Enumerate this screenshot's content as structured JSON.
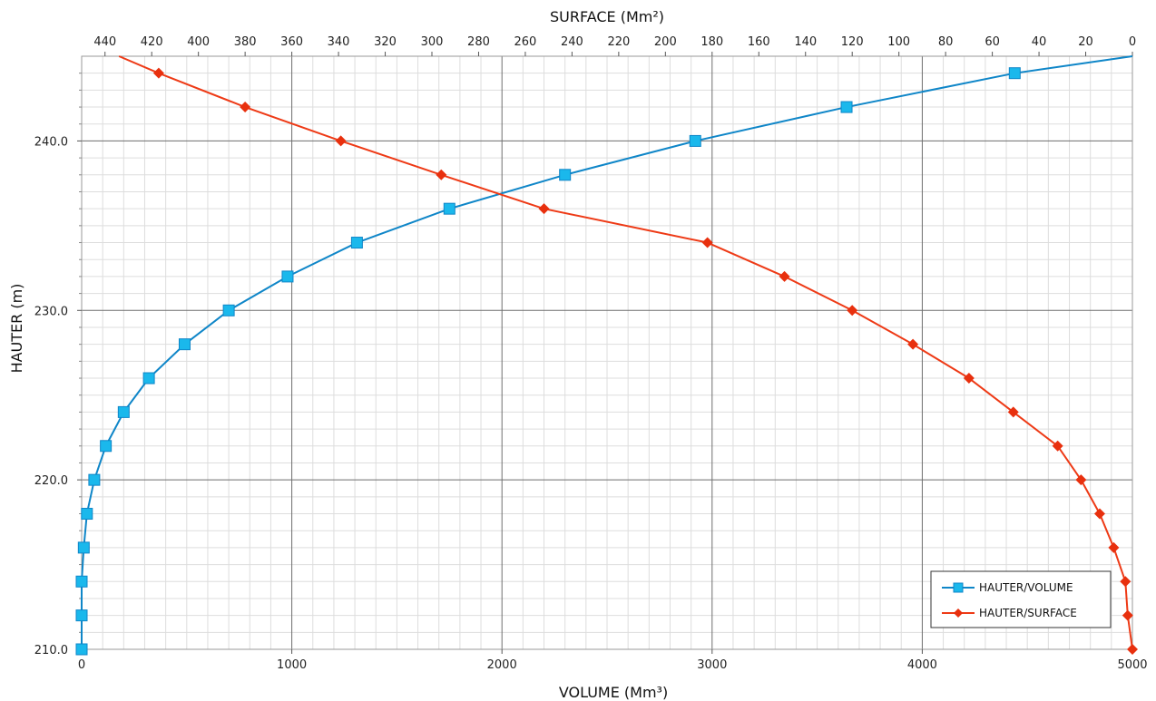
{
  "chart_data": {
    "type": "line",
    "title": "",
    "top_axis": {
      "label": "SURFACE (Mm²)",
      "range": [
        450,
        0
      ],
      "ticks": [
        "440",
        "420",
        "400",
        "380",
        "360",
        "340",
        "320",
        "300",
        "280",
        "260",
        "240",
        "220",
        "200",
        "180",
        "160",
        "140",
        "120",
        "100",
        "80",
        "60",
        "40",
        "20",
        "0"
      ]
    },
    "bottom_axis": {
      "label": "VOLUME (Mm³)",
      "range": [
        0,
        5000
      ],
      "ticks": [
        "0",
        "1000",
        "2000",
        "3000",
        "4000",
        "5000"
      ]
    },
    "left_axis": {
      "label": "HAUTER (m)",
      "range": [
        210,
        245
      ],
      "ticks": [
        "210.0",
        "220.0",
        "230.0",
        "240.0"
      ]
    },
    "grid": true,
    "legend_position": "bottom-right",
    "series": [
      {
        "name": "HAUTER/VOLUME",
        "axis": "bottom",
        "color": "#0f86c8",
        "marker": "square",
        "marker_color": "#1ab8ec",
        "points": [
          [
            0,
            210
          ],
          [
            0,
            212
          ],
          [
            0,
            214
          ],
          [
            10,
            216
          ],
          [
            25,
            218
          ],
          [
            60,
            220
          ],
          [
            115,
            222
          ],
          [
            200,
            224
          ],
          [
            320,
            226
          ],
          [
            490,
            228
          ],
          [
            700,
            230
          ],
          [
            980,
            232
          ],
          [
            1310,
            234
          ],
          [
            1750,
            236
          ],
          [
            2300,
            238
          ],
          [
            2920,
            240
          ],
          [
            3640,
            242
          ],
          [
            4440,
            244
          ],
          [
            5000,
            245
          ]
        ]
      },
      {
        "name": "HAUTER/SURFACE",
        "axis": "top",
        "color": "#ee3a16",
        "marker": "diamond",
        "marker_color": "#e8300e",
        "points": [
          [
            0,
            210
          ],
          [
            2,
            212
          ],
          [
            3,
            214
          ],
          [
            8,
            216
          ],
          [
            14,
            218
          ],
          [
            22,
            220
          ],
          [
            32,
            222
          ],
          [
            51,
            224
          ],
          [
            70,
            226
          ],
          [
            94,
            228
          ],
          [
            120,
            230
          ],
          [
            149,
            232
          ],
          [
            182,
            234
          ],
          [
            252,
            236
          ],
          [
            296,
            238
          ],
          [
            339,
            240
          ],
          [
            380,
            242
          ],
          [
            417,
            244
          ],
          [
            434,
            245
          ]
        ]
      }
    ]
  }
}
